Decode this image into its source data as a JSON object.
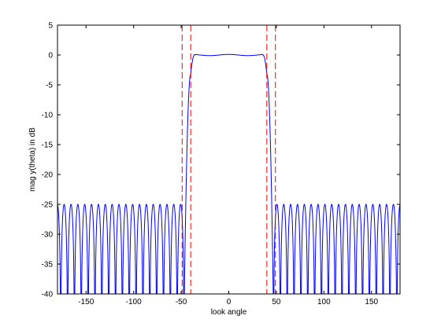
{
  "chart_data": {
    "type": "line",
    "title": "",
    "xlabel": "look angle",
    "ylabel": "mag y(theta) in dB",
    "xlim": [
      -180,
      180
    ],
    "ylim": [
      -40,
      5
    ],
    "xticks": [
      -150,
      -100,
      -50,
      0,
      50,
      100,
      150
    ],
    "yticks": [
      5,
      0,
      -5,
      -10,
      -15,
      -20,
      -25,
      -30,
      -35,
      -40
    ],
    "grid": false,
    "legend": "none",
    "series": [
      {
        "color": "#0000ff",
        "style": "solid",
        "description_of_shape": "passband ~0 dB between about -40 and 40 deg with steep transitions to -40 dB near +/-47 deg; outside, equiripple sidelobes peaking at about -25 dB with nulls below -40 dB",
        "passband": {
          "x_start": -40,
          "x_end": 40,
          "level_db": 0,
          "ripple_db": 0.2
        },
        "transition_edges": [
          -47,
          47
        ],
        "sidelobe_peak_db": -25,
        "sidelobe_period_deg": 7.2
      }
    ],
    "vertical_markers": {
      "color": "#ff0000",
      "style": "dashed",
      "x": [
        -49,
        -40,
        40,
        49
      ]
    }
  }
}
